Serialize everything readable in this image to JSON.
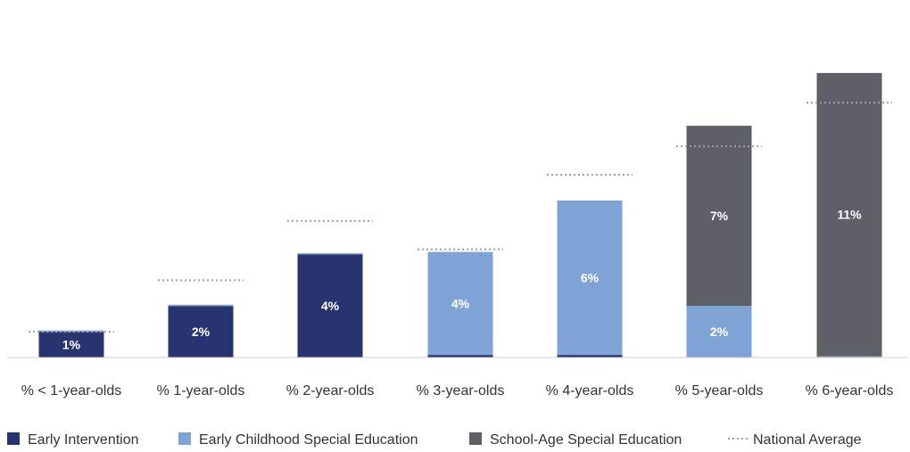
{
  "chart_data": {
    "type": "bar",
    "stacked": true,
    "categories": [
      "% < 1-year-olds",
      "% 1-year-olds",
      "% 2-year-olds",
      "% 3-year-olds",
      "% 4-year-olds",
      "% 5-year-olds",
      "% 6-year-olds"
    ],
    "series": [
      {
        "name": "Early Intervention",
        "color": "#283470",
        "values": [
          1,
          2,
          4,
          0.1,
          0.1,
          0,
          0
        ],
        "labels": [
          "1%",
          "2%",
          "4%",
          "",
          "",
          "",
          ""
        ]
      },
      {
        "name": "Early Childhood Special Education",
        "color": "#7fa3d5",
        "values": [
          0.05,
          0.05,
          0.05,
          4,
          6,
          2,
          0.05
        ],
        "labels": [
          "",
          "",
          "",
          "4%",
          "6%",
          "2%",
          ""
        ]
      },
      {
        "name": "School-Age Special Education",
        "color": "#5d6066",
        "values": [
          0,
          0,
          0,
          0,
          0,
          7,
          11
        ],
        "labels": [
          "",
          "",
          "",
          "",
          "",
          "7%",
          "11%"
        ]
      }
    ],
    "national_average": {
      "name": "National Average",
      "color": "#9aa0a6",
      "values": [
        1,
        3,
        5.3,
        4.2,
        7.1,
        8.2,
        9.9
      ]
    },
    "ylim": [
      0,
      12.5
    ],
    "grid": false,
    "legend_position": "bottom-left"
  }
}
